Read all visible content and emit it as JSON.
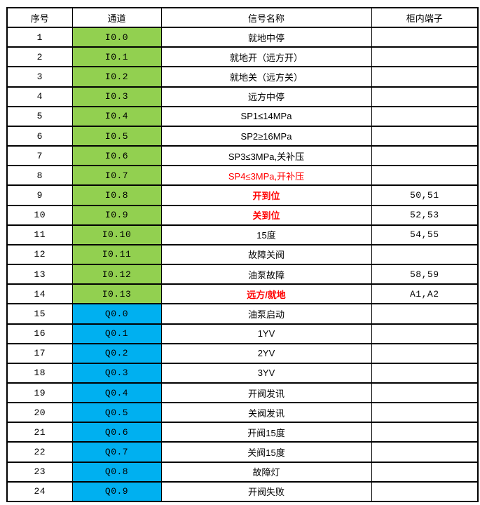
{
  "table": {
    "headers": [
      {
        "label": "序号"
      },
      {
        "label": "通道"
      },
      {
        "label": "信号名称"
      },
      {
        "label": "柜内端子"
      }
    ],
    "colors": {
      "input_channel_bg": "#92d050",
      "output_channel_bg": "#00b0f0",
      "alert_text": "#ff0000",
      "border": "#000000",
      "text": "#000000",
      "background": "#ffffff"
    },
    "rows": [
      {
        "no": "1",
        "channel": "I0.0",
        "channel_type": "input",
        "signal": "就地中停",
        "signal_style": "normal",
        "terminal": ""
      },
      {
        "no": "2",
        "channel": "I0.1",
        "channel_type": "input",
        "signal": "就地开（远方开）",
        "signal_style": "normal",
        "terminal": ""
      },
      {
        "no": "3",
        "channel": "I0.2",
        "channel_type": "input",
        "signal": "就地关（远方关）",
        "signal_style": "normal",
        "terminal": ""
      },
      {
        "no": "4",
        "channel": "I0.3",
        "channel_type": "input",
        "signal": "远方中停",
        "signal_style": "normal",
        "terminal": ""
      },
      {
        "no": "5",
        "channel": "I0.4",
        "channel_type": "input",
        "signal": "SP1≤14MPa",
        "signal_style": "normal",
        "terminal": ""
      },
      {
        "no": "6",
        "channel": "I0.5",
        "channel_type": "input",
        "signal": "SP2≥16MPa",
        "signal_style": "normal",
        "terminal": ""
      },
      {
        "no": "7",
        "channel": "I0.6",
        "channel_type": "input",
        "signal": "SP3≤3MPa,关补压",
        "signal_style": "normal",
        "terminal": ""
      },
      {
        "no": "8",
        "channel": "I0.7",
        "channel_type": "input",
        "signal": "SP4≤3MPa,开补压",
        "signal_style": "red",
        "terminal": ""
      },
      {
        "no": "9",
        "channel": "I0.8",
        "channel_type": "input",
        "signal": "开到位",
        "signal_style": "red-bold",
        "terminal": "50,51"
      },
      {
        "no": "10",
        "channel": "I0.9",
        "channel_type": "input",
        "signal": "关到位",
        "signal_style": "red-bold",
        "terminal": "52,53"
      },
      {
        "no": "11",
        "channel": "I0.10",
        "channel_type": "input",
        "signal": "15度",
        "signal_style": "normal",
        "terminal": "54,55"
      },
      {
        "no": "12",
        "channel": "I0.11",
        "channel_type": "input",
        "signal": "故障关阀",
        "signal_style": "normal",
        "terminal": ""
      },
      {
        "no": "13",
        "channel": "I0.12",
        "channel_type": "input",
        "signal": "油泵故障",
        "signal_style": "normal",
        "terminal": "58,59"
      },
      {
        "no": "14",
        "channel": "I0.13",
        "channel_type": "input",
        "signal": "远方/就地",
        "signal_style": "red-bold",
        "terminal": "A1,A2"
      },
      {
        "no": "15",
        "channel": "Q0.0",
        "channel_type": "output",
        "signal": "油泵启动",
        "signal_style": "normal",
        "terminal": ""
      },
      {
        "no": "16",
        "channel": "Q0.1",
        "channel_type": "output",
        "signal": "1YV",
        "signal_style": "normal",
        "terminal": ""
      },
      {
        "no": "17",
        "channel": "Q0.2",
        "channel_type": "output",
        "signal": "2YV",
        "signal_style": "normal",
        "terminal": ""
      },
      {
        "no": "18",
        "channel": "Q0.3",
        "channel_type": "output",
        "signal": "3YV",
        "signal_style": "normal",
        "terminal": ""
      },
      {
        "no": "19",
        "channel": "Q0.4",
        "channel_type": "output",
        "signal": "开阀发讯",
        "signal_style": "normal",
        "terminal": ""
      },
      {
        "no": "20",
        "channel": "Q0.5",
        "channel_type": "output",
        "signal": "关阀发讯",
        "signal_style": "normal",
        "terminal": ""
      },
      {
        "no": "21",
        "channel": "Q0.6",
        "channel_type": "output",
        "signal": "开阀15度",
        "signal_style": "normal",
        "terminal": ""
      },
      {
        "no": "22",
        "channel": "Q0.7",
        "channel_type": "output",
        "signal": "关阀15度",
        "signal_style": "normal",
        "terminal": ""
      },
      {
        "no": "23",
        "channel": "Q0.8",
        "channel_type": "output",
        "signal": "故障灯",
        "signal_style": "normal",
        "terminal": ""
      },
      {
        "no": "24",
        "channel": "Q0.9",
        "channel_type": "output",
        "signal": "开阀失败",
        "signal_style": "normal",
        "terminal": ""
      }
    ]
  }
}
